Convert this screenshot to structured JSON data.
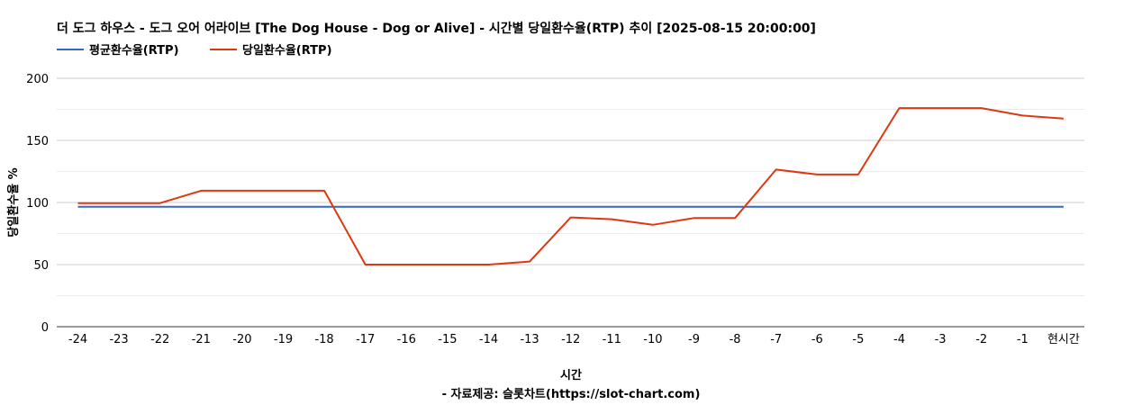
{
  "chart_data": {
    "type": "line",
    "title": "더 도그 하우스 - 도그 오어 어라이브 [The Dog House - Dog or Alive] - 시간별 당일환수율(RTP) 추이 [2025-08-15 20:00:00]",
    "xlabel": "시간",
    "source_note": "- 자료제공: 슬롯차트(https://slot-chart.com)",
    "ylabel": "당일환수율 %",
    "ylim": [
      0,
      200
    ],
    "yticks": [
      0,
      50,
      100,
      150,
      200
    ],
    "grid": true,
    "legend_position": "top-left",
    "categories": [
      "-24",
      "-23",
      "-22",
      "-21",
      "-20",
      "-19",
      "-18",
      "-17",
      "-16",
      "-15",
      "-14",
      "-13",
      "-12",
      "-11",
      "-10",
      "-9",
      "-8",
      "-7",
      "-6",
      "-5",
      "-4",
      "-3",
      "-2",
      "-1",
      "현시간"
    ],
    "series": [
      {
        "name": "평균환수율(RTP)",
        "color": "#3366cc",
        "values": [
          96.5,
          96.5,
          96.5,
          96.5,
          96.5,
          96.5,
          96.5,
          96.5,
          96.5,
          96.5,
          96.5,
          96.5,
          96.5,
          96.5,
          96.5,
          96.5,
          96.5,
          96.5,
          96.5,
          96.5,
          96.5,
          96.5,
          96.5,
          96.5,
          96.5
        ]
      },
      {
        "name": "당일환수율(RTP)",
        "color": "#dc3912",
        "values": [
          99.5,
          99.5,
          99.5,
          109.5,
          109.5,
          109.5,
          109.5,
          50,
          50,
          50,
          50,
          52.5,
          88,
          86.5,
          82,
          87.5,
          87.5,
          126.5,
          122.5,
          122.5,
          176,
          176,
          176,
          170,
          167.5
        ]
      }
    ]
  }
}
